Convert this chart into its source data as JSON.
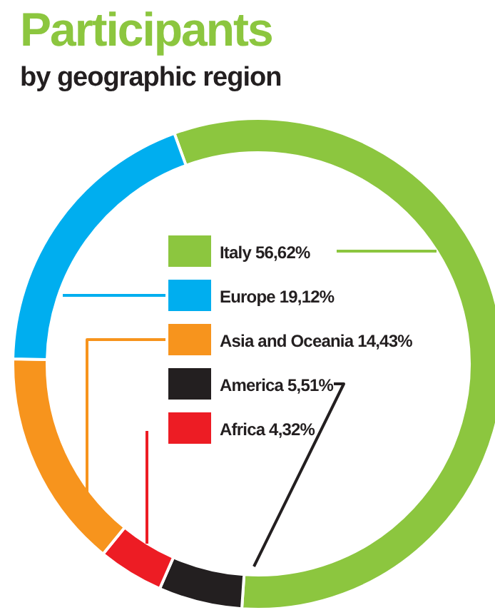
{
  "chart_data": {
    "type": "donut",
    "title": "Participants",
    "subtitle": "by geographic region",
    "categories": [
      "Italy",
      "Europe",
      "Asia and Oceania",
      "America",
      "Africa"
    ],
    "values": [
      56.62,
      19.12,
      14.43,
      5.51,
      4.32
    ],
    "value_labels": [
      "56,62%",
      "19,12%",
      "14,43%",
      "5,51%",
      "4,32%"
    ],
    "colors": [
      "#8cc63f",
      "#00aeef",
      "#f7941d",
      "#231f20",
      "#ed1c24"
    ],
    "legend": "top right"
  }
}
